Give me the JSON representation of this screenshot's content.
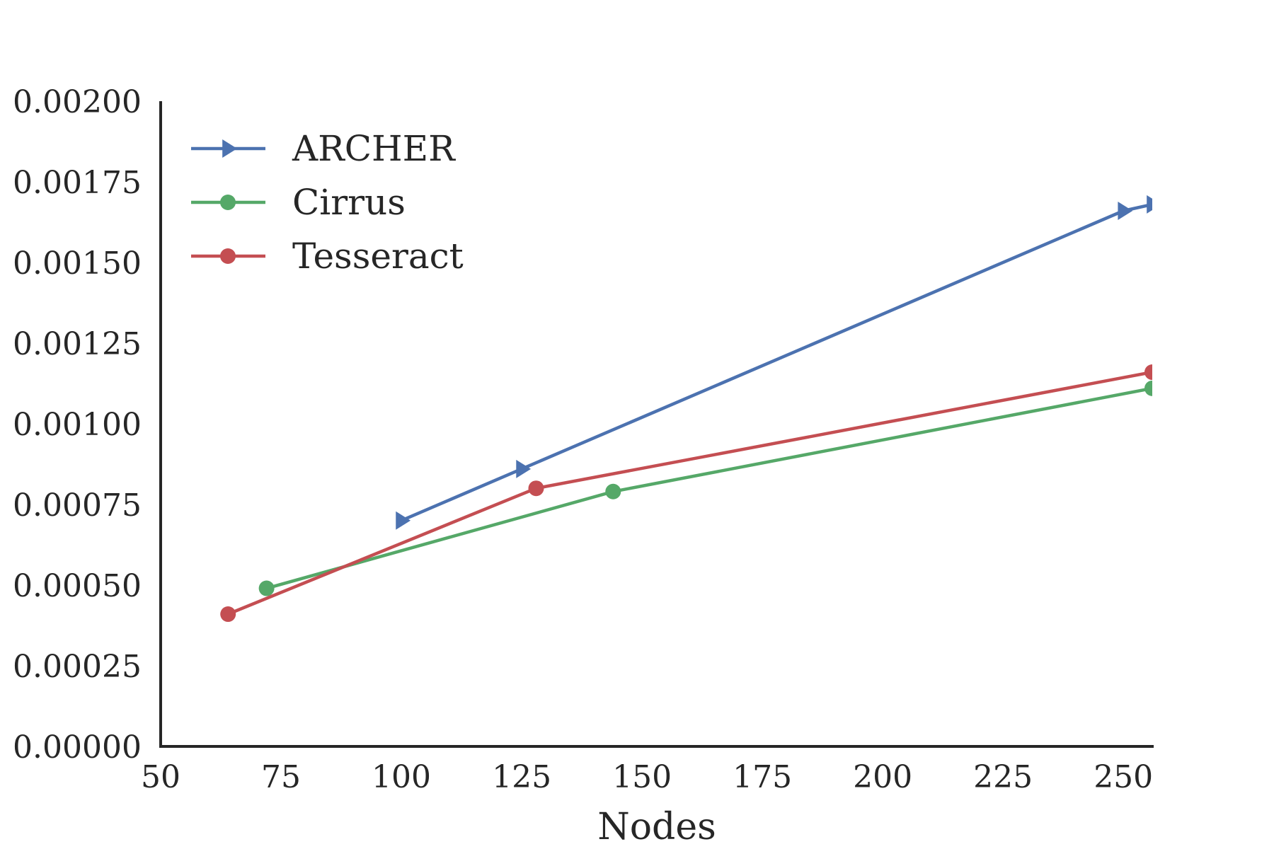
{
  "chart_data": {
    "type": "line",
    "title": "",
    "xlabel": "Nodes",
    "ylabel": "",
    "xlim": [
      50,
      256
    ],
    "ylim": [
      0,
      0.002
    ],
    "xticks": [
      50,
      75,
      100,
      125,
      150,
      175,
      200,
      225,
      250
    ],
    "xtick_labels": [
      "50",
      "75",
      "100",
      "125",
      "150",
      "175",
      "200",
      "225",
      "250"
    ],
    "yticks": [
      0,
      0.00025,
      0.0005,
      0.00075,
      0.001,
      0.00125,
      0.0015,
      0.00175,
      0.002
    ],
    "ytick_labels": [
      "0.00000",
      "0.00025",
      "0.00050",
      "0.00075",
      "0.00100",
      "0.00125",
      "0.00150",
      "0.00175",
      "0.00200"
    ],
    "grid": false,
    "legend_position": "top-left",
    "series": [
      {
        "name": "ARCHER",
        "color": "#4c72b0",
        "marker": "triangle-right",
        "x": [
          100,
          125,
          250,
          256
        ],
        "y": [
          0.0007,
          0.00086,
          0.00166,
          0.00168
        ]
      },
      {
        "name": "Cirrus",
        "color": "#55a868",
        "marker": "circle",
        "x": [
          72,
          144,
          256
        ],
        "y": [
          0.00049,
          0.00079,
          0.00111
        ]
      },
      {
        "name": "Tesseract",
        "color": "#c44e52",
        "marker": "circle",
        "x": [
          64,
          128,
          256
        ],
        "y": [
          0.00041,
          0.0008,
          0.00116
        ]
      }
    ]
  }
}
